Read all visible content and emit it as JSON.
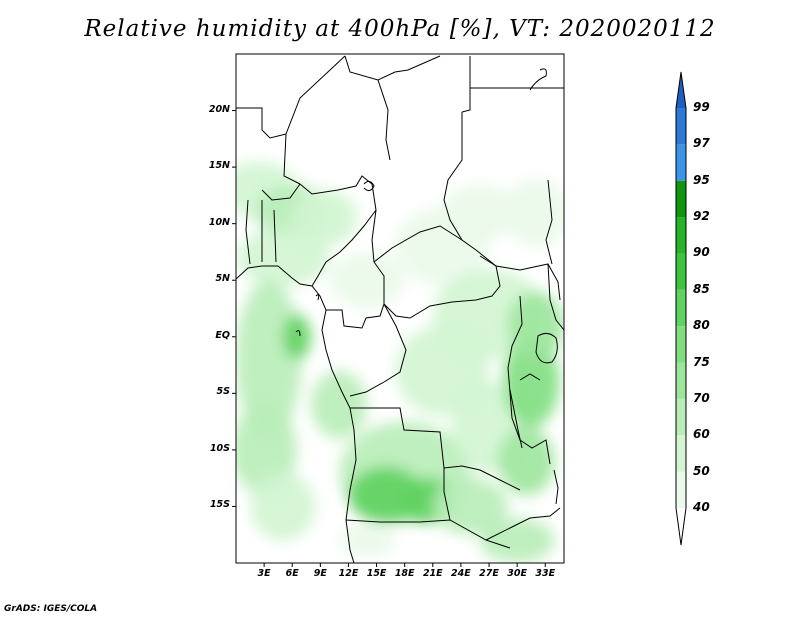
{
  "title": "Relative humidity at 400hPa [%], VT: 2020020112",
  "credit": "GrADS: IGES/COLA",
  "map": {
    "variable": "Relative humidity",
    "level": "400hPa",
    "units": "%",
    "valid_time": "2020020112",
    "lon_range": [
      0,
      35
    ],
    "lat_range": [
      -20,
      25
    ],
    "lat_ticks": [
      {
        "value": 20,
        "label": "20N"
      },
      {
        "value": 15,
        "label": "15N"
      },
      {
        "value": 10,
        "label": "10N"
      },
      {
        "value": 5,
        "label": "5N"
      },
      {
        "value": 0,
        "label": "EQ"
      },
      {
        "value": -5,
        "label": "5S"
      },
      {
        "value": -10,
        "label": "10S"
      },
      {
        "value": -15,
        "label": "15S"
      }
    ],
    "lon_ticks": [
      {
        "value": 3,
        "label": "3E"
      },
      {
        "value": 6,
        "label": "6E"
      },
      {
        "value": 9,
        "label": "9E"
      },
      {
        "value": 12,
        "label": "12E"
      },
      {
        "value": 15,
        "label": "15E"
      },
      {
        "value": 18,
        "label": "18E"
      },
      {
        "value": 21,
        "label": "21E"
      },
      {
        "value": 24,
        "label": "24E"
      },
      {
        "value": 27,
        "label": "27E"
      },
      {
        "value": 30,
        "label": "30E"
      },
      {
        "value": 33,
        "label": "33E"
      }
    ]
  },
  "colorbar": {
    "bins": [
      {
        "from": 40,
        "to": 50,
        "color": "#eafaea"
      },
      {
        "from": 50,
        "to": 60,
        "color": "#d2f5d2"
      },
      {
        "from": 60,
        "to": 70,
        "color": "#b8edb8"
      },
      {
        "from": 70,
        "to": 75,
        "color": "#9ce69c"
      },
      {
        "from": 75,
        "to": 80,
        "color": "#80de80"
      },
      {
        "from": 80,
        "to": 85,
        "color": "#5fd25f"
      },
      {
        "from": 85,
        "to": 90,
        "color": "#3fc43f"
      },
      {
        "from": 90,
        "to": 92,
        "color": "#27b427"
      },
      {
        "from": 92,
        "to": 95,
        "color": "#119611"
      },
      {
        "from": 95,
        "to": 97,
        "color": "#3c94e6"
      },
      {
        "from": 97,
        "to": 99,
        "color": "#2a7ad6"
      }
    ],
    "over_color": "#1f5fbf",
    "labels": [
      "99",
      "97",
      "95",
      "92",
      "90",
      "85",
      "80",
      "75",
      "70",
      "60",
      "50",
      "40"
    ]
  },
  "humidity_patches": [
    {
      "lon": 2.5,
      "lat": 13.0,
      "rlon": 4.0,
      "rlat": 2.5,
      "rh": 55
    },
    {
      "lon": 6.0,
      "lat": 11.0,
      "rlon": 4.0,
      "rlat": 2.5,
      "rh": 65
    },
    {
      "lon": 9.5,
      "lat": 10.5,
      "rlon": 3.5,
      "rlat": 2.5,
      "rh": 50
    },
    {
      "lon": 5.0,
      "lat": 7.0,
      "rlon": 5.0,
      "rlat": 2.5,
      "rh": 50
    },
    {
      "lon": 14.0,
      "lat": 5.0,
      "rlon": 4.0,
      "rlat": 2.5,
      "rh": 48
    },
    {
      "lon": 22.0,
      "lat": 8.0,
      "rlon": 5.0,
      "rlat": 3.5,
      "rh": 48
    },
    {
      "lon": 26.0,
      "lat": 11.0,
      "rlon": 4.0,
      "rlat": 2.5,
      "rh": 45
    },
    {
      "lon": 32.0,
      "lat": 11.0,
      "rlon": 3.5,
      "rlat": 3.0,
      "rh": 45
    },
    {
      "lon": 27.0,
      "lat": 2.0,
      "rlon": 6.0,
      "rlat": 4.0,
      "rh": 55
    },
    {
      "lon": 22.0,
      "lat": -3.0,
      "rlon": 5.0,
      "rlat": 4.0,
      "rh": 50
    },
    {
      "lon": 3.5,
      "lat": -2.0,
      "rlon": 3.5,
      "rlat": 7.0,
      "rh": 65
    },
    {
      "lon": 6.5,
      "lat": 0.0,
      "rlon": 1.5,
      "rlat": 2.0,
      "rh": 82
    },
    {
      "lon": 3.0,
      "lat": -10.0,
      "rlon": 3.5,
      "rlat": 4.0,
      "rh": 62
    },
    {
      "lon": 11.0,
      "lat": -6.0,
      "rlon": 3.0,
      "rlat": 3.0,
      "rh": 60
    },
    {
      "lon": 18.0,
      "lat": -12.0,
      "rlon": 7.0,
      "rlat": 4.5,
      "rh": 68
    },
    {
      "lon": 16.0,
      "lat": -14.0,
      "rlon": 4.0,
      "rlat": 2.5,
      "rh": 80
    },
    {
      "lon": 20.5,
      "lat": -14.5,
      "rlon": 3.0,
      "rlat": 2.0,
      "rh": 82
    },
    {
      "lon": 27.0,
      "lat": -8.0,
      "rlon": 4.0,
      "rlat": 4.0,
      "rh": 58
    },
    {
      "lon": 31.5,
      "lat": -4.0,
      "rlon": 3.0,
      "rlat": 4.0,
      "rh": 78
    },
    {
      "lon": 32.0,
      "lat": 1.0,
      "rlon": 3.0,
      "rlat": 3.0,
      "rh": 70
    },
    {
      "lon": 31.0,
      "lat": -11.0,
      "rlon": 3.0,
      "rlat": 3.0,
      "rh": 72
    },
    {
      "lon": 25.0,
      "lat": -15.0,
      "rlon": 4.0,
      "rlat": 2.5,
      "rh": 60
    },
    {
      "lon": 30.0,
      "lat": -18.0,
      "rlon": 4.0,
      "rlat": 2.0,
      "rh": 68
    },
    {
      "lon": 5.0,
      "lat": -15.0,
      "rlon": 3.5,
      "rlat": 3.0,
      "rh": 50
    },
    {
      "lon": 14.0,
      "lat": -18.0,
      "rlon": 3.0,
      "rlat": 1.5,
      "rh": 48
    }
  ]
}
